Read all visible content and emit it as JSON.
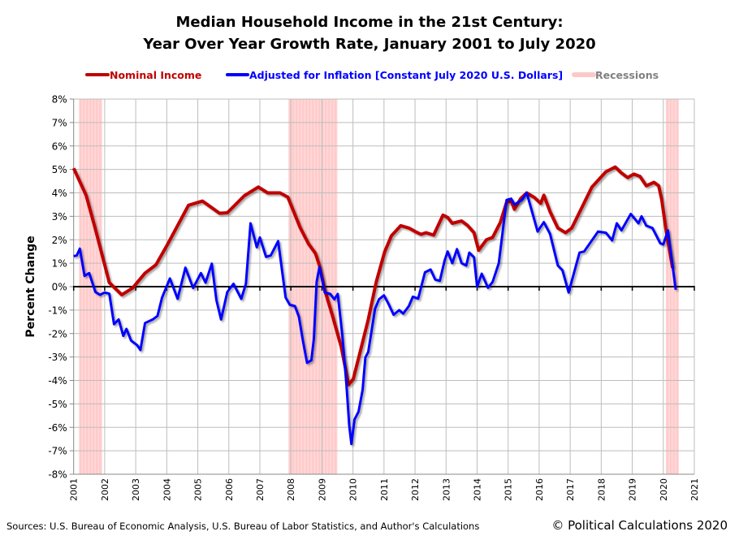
{
  "chart_data": {
    "type": "line",
    "title": [
      "Median Household Income in the 21st Century:",
      "Year Over Year Growth Rate, January 2001 to July 2020"
    ],
    "ylabel": "Percent Change",
    "xlabel": "",
    "xlim": [
      2001,
      2021
    ],
    "ylim": [
      -8,
      8
    ],
    "x_ticks": [
      "2001",
      "2002",
      "2003",
      "2004",
      "2005",
      "2006",
      "2007",
      "2008",
      "2009",
      "2010",
      "2011",
      "2012",
      "2013",
      "2014",
      "2015",
      "2016",
      "2017",
      "2018",
      "2019",
      "2020",
      "2021"
    ],
    "y_ticks": [
      8,
      7,
      6,
      5,
      4,
      3,
      2,
      1,
      0,
      -1,
      -2,
      -3,
      -4,
      -5,
      -6,
      -7,
      -8
    ],
    "y_tick_labels": [
      "8%",
      "7%",
      "6%",
      "5%",
      "4%",
      "3%",
      "2%",
      "1%",
      "0%",
      "-1%",
      "-2%",
      "-3%",
      "-4%",
      "-5%",
      "-6%",
      "-7%",
      "-8%"
    ],
    "grid": true,
    "legend_position": "top",
    "legend": [
      {
        "label": "Nominal Income",
        "color": "#c00000"
      },
      {
        "label": "Adjusted for Inflation [Constant July 2020 U.S. Dollars]",
        "color": "#0000ff"
      },
      {
        "label": "Recessions",
        "color": "#ffc8c8",
        "text_color": "#808080"
      }
    ],
    "recessions": [
      {
        "start": 2001.17,
        "end": 2001.92
      },
      {
        "start": 2007.92,
        "end": 2009.5
      },
      {
        "start": 2020.08,
        "end": 2020.5
      }
    ],
    "series": [
      {
        "name": "Nominal Income",
        "color": "#c00000",
        "points": [
          [
            2001.0,
            5.05
          ],
          [
            2001.4,
            3.9
          ],
          [
            2001.7,
            2.45
          ],
          [
            2002.15,
            0.17
          ],
          [
            2002.55,
            -0.35
          ],
          [
            2002.9,
            -0.06
          ],
          [
            2003.3,
            0.58
          ],
          [
            2003.65,
            0.93
          ],
          [
            2004.0,
            1.74
          ],
          [
            2004.7,
            3.47
          ],
          [
            2005.15,
            3.65
          ],
          [
            2005.7,
            3.13
          ],
          [
            2005.95,
            3.15
          ],
          [
            2006.5,
            3.88
          ],
          [
            2006.95,
            4.25
          ],
          [
            2007.25,
            4.0
          ],
          [
            2007.65,
            4.0
          ],
          [
            2007.9,
            3.82
          ],
          [
            2008.3,
            2.51
          ],
          [
            2008.57,
            1.82
          ],
          [
            2008.79,
            1.42
          ],
          [
            2008.92,
            0.9
          ],
          [
            2009.09,
            -0.14
          ],
          [
            2009.35,
            -1.29
          ],
          [
            2009.62,
            -2.56
          ],
          [
            2009.86,
            -4.18
          ],
          [
            2010.01,
            -3.94
          ],
          [
            2010.23,
            -2.79
          ],
          [
            2010.49,
            -1.41
          ],
          [
            2010.75,
            0.2
          ],
          [
            2011.02,
            1.48
          ],
          [
            2011.24,
            2.17
          ],
          [
            2011.54,
            2.6
          ],
          [
            2011.8,
            2.5
          ],
          [
            2012.02,
            2.34
          ],
          [
            2012.19,
            2.23
          ],
          [
            2012.35,
            2.3
          ],
          [
            2012.6,
            2.2
          ],
          [
            2012.9,
            3.05
          ],
          [
            2013.05,
            2.95
          ],
          [
            2013.2,
            2.7
          ],
          [
            2013.5,
            2.8
          ],
          [
            2013.7,
            2.6
          ],
          [
            2013.9,
            2.3
          ],
          [
            2014.05,
            1.55
          ],
          [
            2014.3,
            2.0
          ],
          [
            2014.5,
            2.1
          ],
          [
            2014.75,
            2.75
          ],
          [
            2014.95,
            3.6
          ],
          [
            2015.1,
            3.65
          ],
          [
            2015.2,
            3.3
          ],
          [
            2015.4,
            3.75
          ],
          [
            2015.6,
            4.0
          ],
          [
            2015.85,
            3.8
          ],
          [
            2016.05,
            3.55
          ],
          [
            2016.15,
            3.9
          ],
          [
            2016.35,
            3.2
          ],
          [
            2016.6,
            2.5
          ],
          [
            2016.85,
            2.3
          ],
          [
            2017.05,
            2.5
          ],
          [
            2017.7,
            4.25
          ],
          [
            2018.15,
            4.9
          ],
          [
            2018.45,
            5.1
          ],
          [
            2018.65,
            4.85
          ],
          [
            2018.85,
            4.65
          ],
          [
            2019.05,
            4.8
          ],
          [
            2019.25,
            4.7
          ],
          [
            2019.45,
            4.3
          ],
          [
            2019.7,
            4.45
          ],
          [
            2019.85,
            4.3
          ],
          [
            2019.95,
            3.7
          ],
          [
            2020.1,
            2.3
          ],
          [
            2020.3,
            0.8
          ]
        ]
      },
      {
        "name": "Adjusted for Inflation [Constant July 2020 U.S. Dollars]",
        "color": "#0000ff",
        "points": [
          [
            2001.0,
            1.3
          ],
          [
            2001.1,
            1.33
          ],
          [
            2001.2,
            1.62
          ],
          [
            2001.35,
            0.46
          ],
          [
            2001.5,
            0.58
          ],
          [
            2001.7,
            -0.23
          ],
          [
            2001.85,
            -0.35
          ],
          [
            2002.0,
            -0.25
          ],
          [
            2002.15,
            -0.3
          ],
          [
            2002.3,
            -1.6
          ],
          [
            2002.45,
            -1.4
          ],
          [
            2002.6,
            -2.1
          ],
          [
            2002.7,
            -1.8
          ],
          [
            2002.85,
            -2.3
          ],
          [
            2003.05,
            -2.5
          ],
          [
            2003.15,
            -2.7
          ],
          [
            2003.3,
            -1.55
          ],
          [
            2003.55,
            -1.4
          ],
          [
            2003.7,
            -1.25
          ],
          [
            2003.85,
            -0.46
          ],
          [
            2004.1,
            0.35
          ],
          [
            2004.35,
            -0.52
          ],
          [
            2004.6,
            0.81
          ],
          [
            2004.85,
            -0.06
          ],
          [
            2005.1,
            0.58
          ],
          [
            2005.25,
            0.17
          ],
          [
            2005.45,
            0.98
          ],
          [
            2005.6,
            -0.58
          ],
          [
            2005.75,
            -1.4
          ],
          [
            2005.95,
            -0.23
          ],
          [
            2006.15,
            0.12
          ],
          [
            2006.4,
            -0.52
          ],
          [
            2006.55,
            0.12
          ],
          [
            2006.7,
            2.7
          ],
          [
            2006.9,
            1.68
          ],
          [
            2007.0,
            2.1
          ],
          [
            2007.2,
            1.27
          ],
          [
            2007.35,
            1.33
          ],
          [
            2007.59,
            1.94
          ],
          [
            2007.83,
            -0.46
          ],
          [
            2007.96,
            -0.77
          ],
          [
            2008.13,
            -0.83
          ],
          [
            2008.26,
            -1.29
          ],
          [
            2008.39,
            -2.33
          ],
          [
            2008.52,
            -3.25
          ],
          [
            2008.66,
            -3.14
          ],
          [
            2008.74,
            -2.22
          ],
          [
            2008.83,
            0.2
          ],
          [
            2008.92,
            0.84
          ],
          [
            2009.09,
            -0.25
          ],
          [
            2009.27,
            -0.31
          ],
          [
            2009.4,
            -0.54
          ],
          [
            2009.51,
            -0.31
          ],
          [
            2009.66,
            -2.1
          ],
          [
            2009.79,
            -4.18
          ],
          [
            2009.88,
            -5.9
          ],
          [
            2009.95,
            -6.71
          ],
          [
            2010.05,
            -5.67
          ],
          [
            2010.18,
            -5.33
          ],
          [
            2010.31,
            -4.4
          ],
          [
            2010.4,
            -3.02
          ],
          [
            2010.49,
            -2.79
          ],
          [
            2010.71,
            -0.95
          ],
          [
            2010.84,
            -0.54
          ],
          [
            2011.0,
            -0.37
          ],
          [
            2011.14,
            -0.72
          ],
          [
            2011.31,
            -1.2
          ],
          [
            2011.49,
            -1.0
          ],
          [
            2011.62,
            -1.15
          ],
          [
            2011.8,
            -0.83
          ],
          [
            2011.93,
            -0.43
          ],
          [
            2012.1,
            -0.51
          ],
          [
            2012.32,
            0.61
          ],
          [
            2012.5,
            0.73
          ],
          [
            2012.65,
            0.3
          ],
          [
            2012.8,
            0.25
          ],
          [
            2012.95,
            1.1
          ],
          [
            2013.05,
            1.5
          ],
          [
            2013.2,
            1.0
          ],
          [
            2013.35,
            1.6
          ],
          [
            2013.5,
            1.0
          ],
          [
            2013.65,
            0.9
          ],
          [
            2013.75,
            1.45
          ],
          [
            2013.9,
            1.25
          ],
          [
            2014.0,
            0.0
          ],
          [
            2014.15,
            0.55
          ],
          [
            2014.35,
            -0.05
          ],
          [
            2014.5,
            0.2
          ],
          [
            2014.7,
            1.0
          ],
          [
            2014.95,
            3.7
          ],
          [
            2015.1,
            3.75
          ],
          [
            2015.2,
            3.5
          ],
          [
            2015.45,
            3.7
          ],
          [
            2015.6,
            4.0
          ],
          [
            2015.95,
            2.35
          ],
          [
            2016.15,
            2.75
          ],
          [
            2016.35,
            2.25
          ],
          [
            2016.6,
            0.9
          ],
          [
            2016.75,
            0.7
          ],
          [
            2016.95,
            -0.25
          ],
          [
            2017.3,
            1.45
          ],
          [
            2017.45,
            1.5
          ],
          [
            2017.9,
            2.35
          ],
          [
            2018.15,
            2.3
          ],
          [
            2018.35,
            1.97
          ],
          [
            2018.5,
            2.7
          ],
          [
            2018.65,
            2.4
          ],
          [
            2018.95,
            3.1
          ],
          [
            2019.2,
            2.7
          ],
          [
            2019.3,
            3.0
          ],
          [
            2019.45,
            2.6
          ],
          [
            2019.65,
            2.5
          ],
          [
            2019.9,
            1.85
          ],
          [
            2020.0,
            1.8
          ],
          [
            2020.15,
            2.4
          ],
          [
            2020.4,
            -0.13
          ]
        ]
      }
    ]
  },
  "footer": {
    "sources": "Sources: U.S. Bureau of Economic Analysis,  U.S. Bureau of Labor Statistics, and Author's Calculations",
    "copyright": "© Political Calculations 2020"
  }
}
